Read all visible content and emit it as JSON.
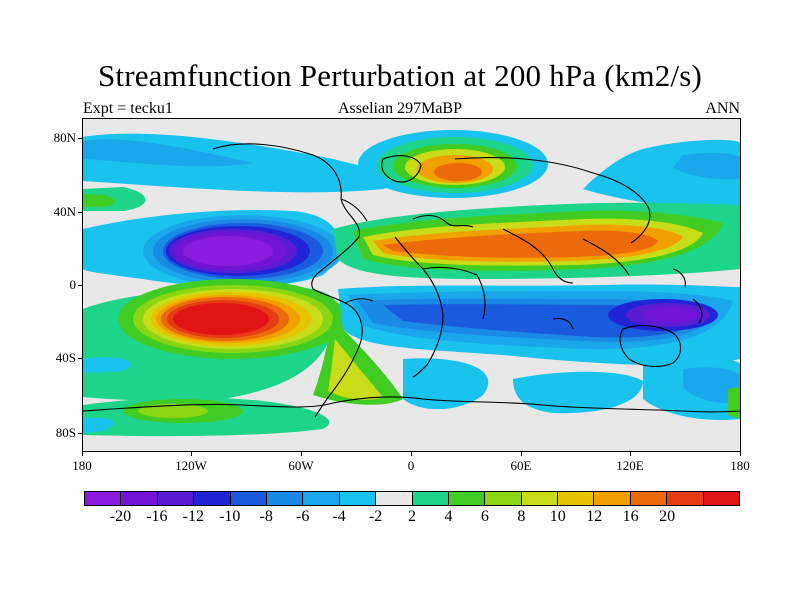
{
  "title": "Streamfunction Perturbation at 200 hPa (km2/s)",
  "subtitle_left": "Expt = tecku1",
  "subtitle_center": "Asselian 297MaBP",
  "subtitle_right": "ANN",
  "y_axis_labels": [
    "80N",
    "40N",
    "0",
    "40S",
    "80S"
  ],
  "x_axis_labels": [
    "180",
    "120W",
    "60W",
    "0",
    "60E",
    "120E",
    "180"
  ],
  "colorbar": {
    "colors": [
      "#8a1adc",
      "#7214d6",
      "#5a1cd2",
      "#2024d6",
      "#1a5ade",
      "#1a8ae6",
      "#1aa6ea",
      "#1ac2ee",
      "#e8e8e8",
      "#1ed48a",
      "#40cc22",
      "#8ad612",
      "#c8dc18",
      "#e6c400",
      "#f2a000",
      "#ec6a0a",
      "#e63c14",
      "#e01414"
    ],
    "labels": [
      "-20",
      "-16",
      "-12",
      "-10",
      "-8",
      "-6",
      "-4",
      "-2",
      "2",
      "4",
      "6",
      "8",
      "10",
      "12",
      "16",
      "20"
    ]
  },
  "field_description": "Streamfunction anomaly field with coastline overlay",
  "colors": {
    "background": "#e8e8e8"
  }
}
